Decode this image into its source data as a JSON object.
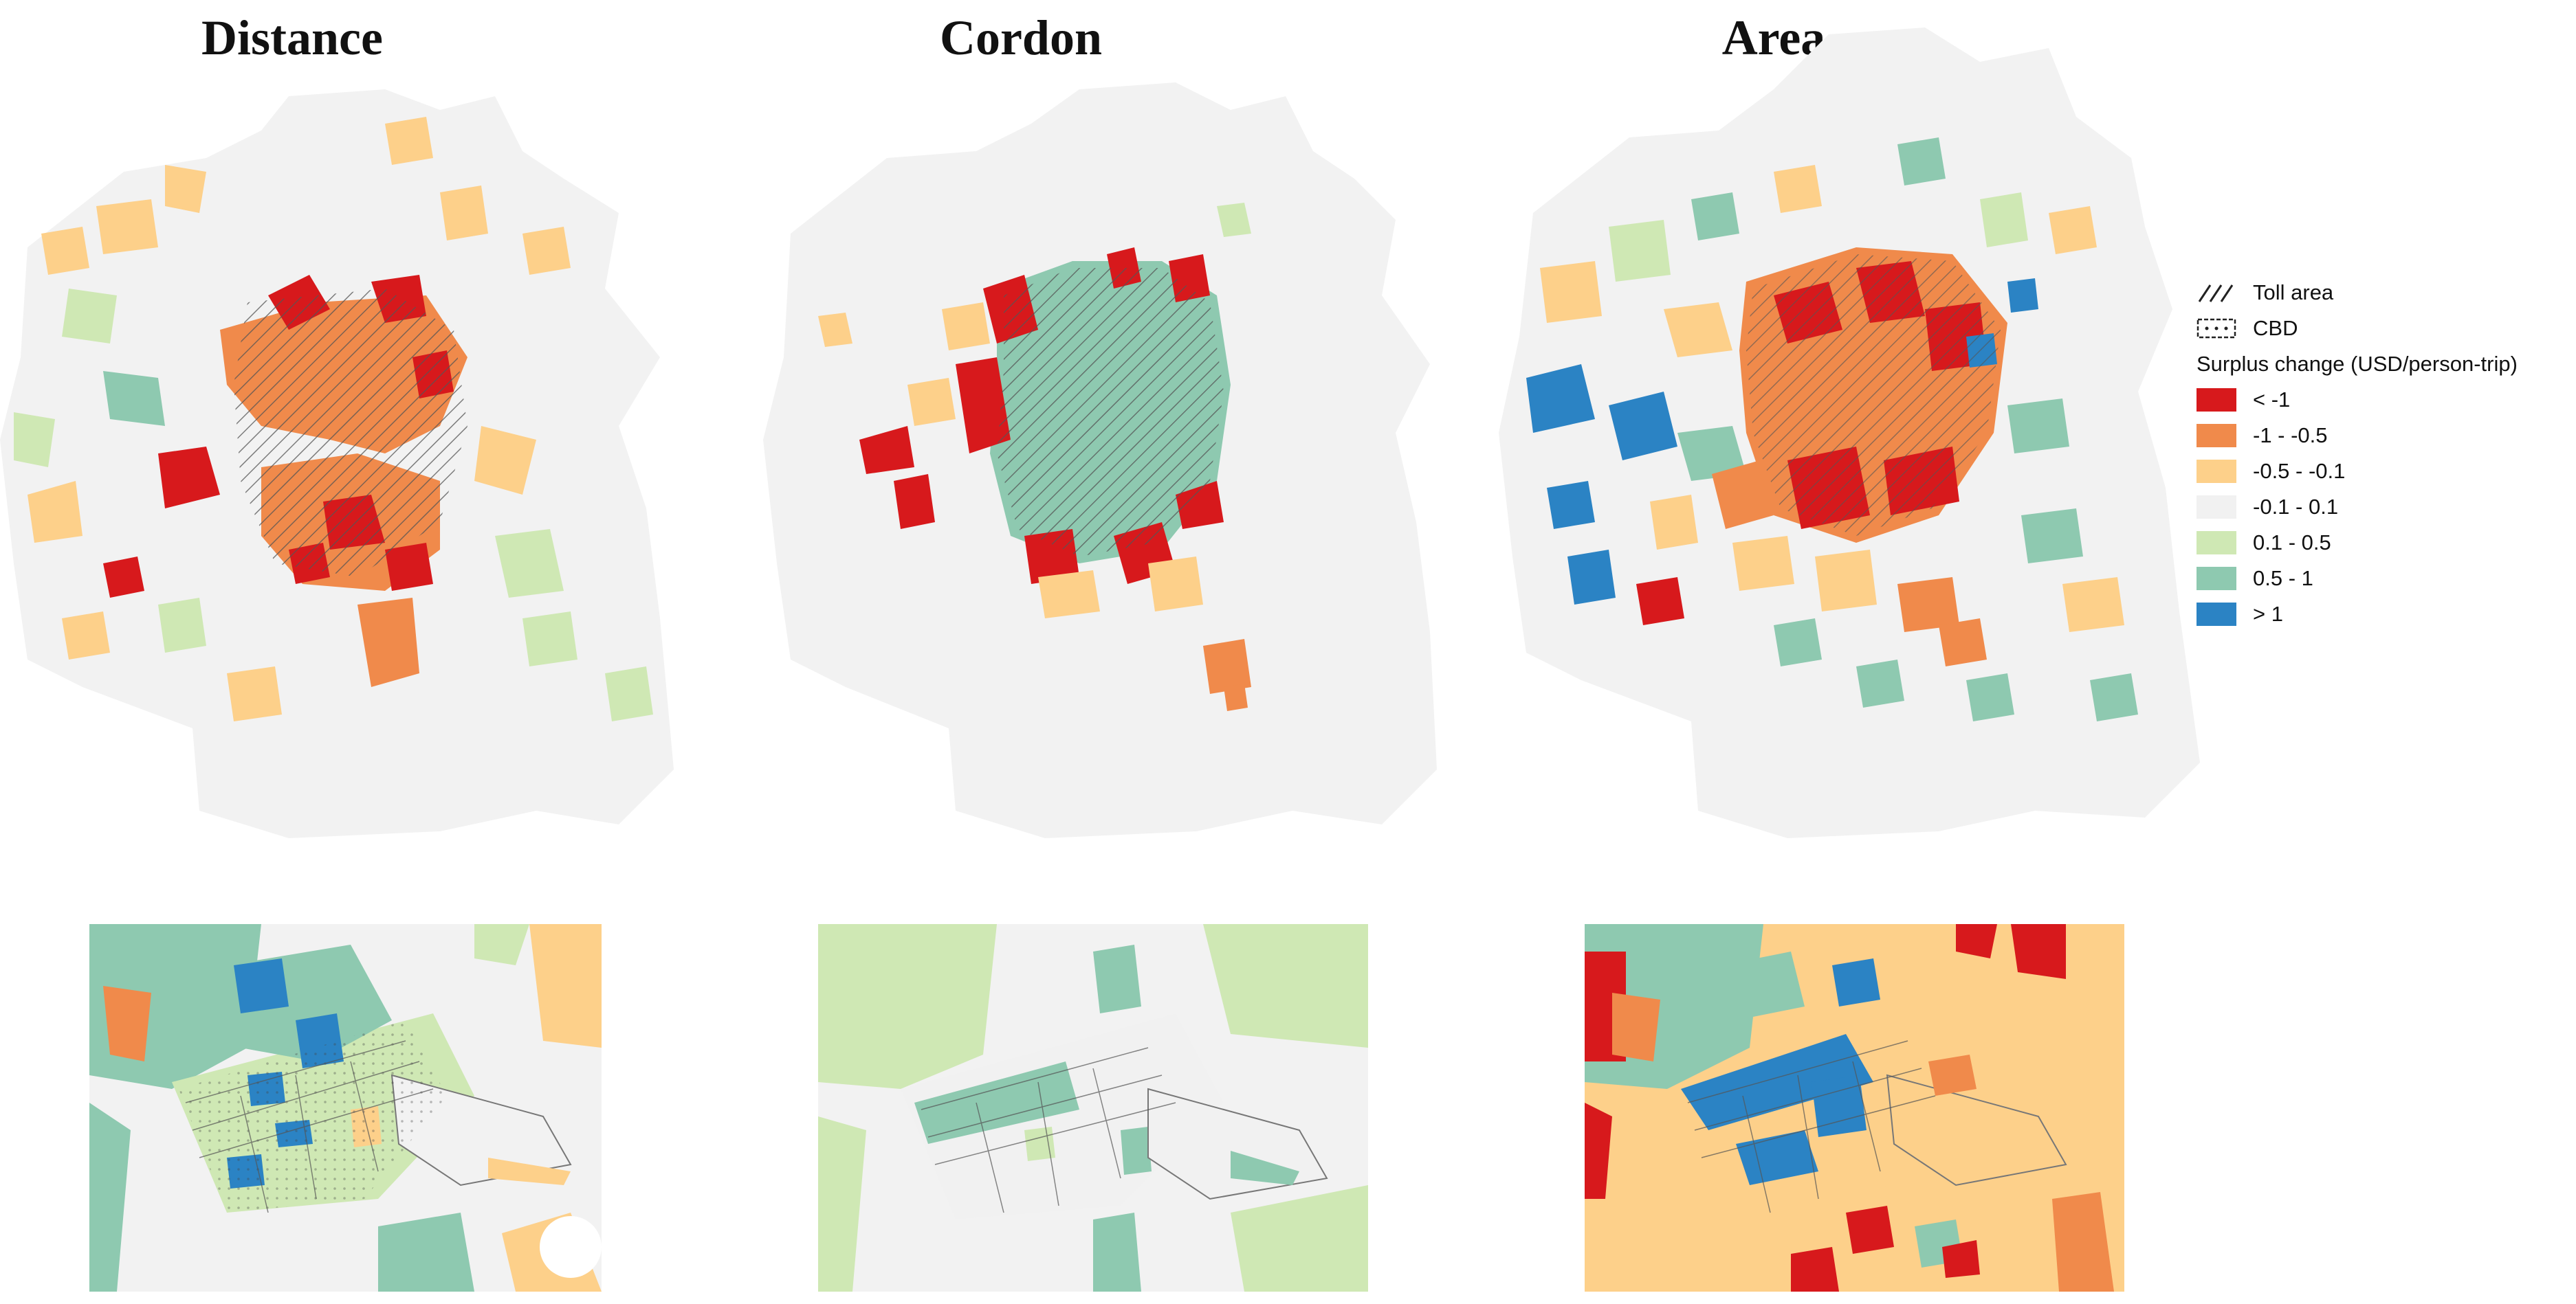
{
  "panels": [
    {
      "title": "Distance"
    },
    {
      "title": "Cordon"
    },
    {
      "title": "Area"
    }
  ],
  "legend": {
    "toll_area_label": "Toll area",
    "cbd_label": "CBD",
    "surplus_title": "Surplus change (USD/person-trip)",
    "classes": [
      {
        "label": "< -1",
        "color": "#d7191c"
      },
      {
        "label": "-1 - -0.5",
        "color": "#f08a4b"
      },
      {
        "label": "-0.5 - -0.1",
        "color": "#fdd08a"
      },
      {
        "label": "-0.1 - 0.1",
        "color": "#f1f1f1"
      },
      {
        "label": "0.1 - 0.5",
        "color": "#cfe8b4"
      },
      {
        "label": "0.5 - 1",
        "color": "#8ec9b0"
      },
      {
        "label": "> 1",
        "color": "#2b83c4"
      }
    ]
  },
  "colors": {
    "background_region": "#f2f2f2"
  }
}
